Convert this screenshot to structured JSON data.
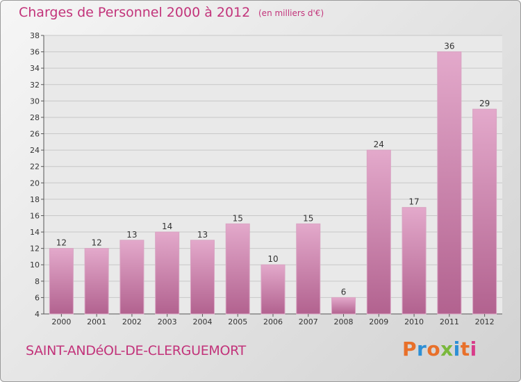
{
  "header": {
    "title": "Charges de Personnel 2000 à 2012",
    "subtitle": "(en milliers d'€)"
  },
  "footer": {
    "town": "SAINT-ANDéOL-DE-CLERGUEMORT",
    "logo": "Proxiti",
    "logo_colors": [
      "#e8702a",
      "#2d8fd5",
      "#e8702a",
      "#7ab83c",
      "#2d8fd5",
      "#e8702a",
      "#d83c8a"
    ]
  },
  "colors": {
    "title": "#c2337a",
    "bar_top": "#e3a9cb",
    "bar_bottom": "#b2628f"
  },
  "chart_data": {
    "type": "bar",
    "title": "Charges de Personnel 2000 à 2012",
    "subtitle": "(en milliers d'€)",
    "categories": [
      "2000",
      "2001",
      "2002",
      "2003",
      "2004",
      "2005",
      "2006",
      "2007",
      "2008",
      "2009",
      "2010",
      "2011",
      "2012"
    ],
    "values": [
      12,
      12,
      13,
      14,
      13,
      15,
      10,
      15,
      6,
      24,
      17,
      36,
      29
    ],
    "ylim": [
      4,
      38
    ],
    "yticks": [
      4,
      6,
      8,
      10,
      12,
      14,
      16,
      18,
      20,
      22,
      24,
      26,
      28,
      30,
      32,
      34,
      36,
      38
    ],
    "grid": true,
    "data_labels": true
  }
}
